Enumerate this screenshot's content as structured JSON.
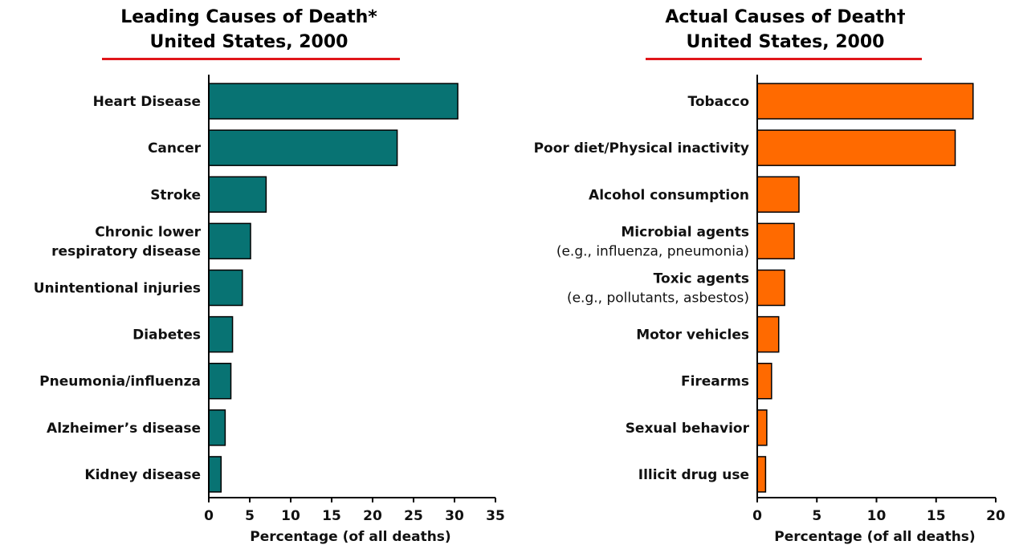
{
  "chart_data": [
    {
      "type": "bar",
      "orientation": "horizontal",
      "title_line1": "Leading Causes of Death*",
      "title_line2": "United States, 2000",
      "xlabel": "Percentage (of all deaths)",
      "xlim": [
        0,
        35
      ],
      "xticks": [
        "0",
        "5",
        "10",
        "15",
        "20",
        "25",
        "30",
        "35"
      ],
      "categories": [
        {
          "label": "Heart Disease",
          "sub": ""
        },
        {
          "label": "Cancer",
          "sub": ""
        },
        {
          "label": "Stroke",
          "sub": ""
        },
        {
          "label": "Chronic lower",
          "sub": "respiratory disease"
        },
        {
          "label": "Unintentional injuries",
          "sub": ""
        },
        {
          "label": "Diabetes",
          "sub": ""
        },
        {
          "label": "Pneumonia/influenza",
          "sub": ""
        },
        {
          "label": "Alzheimer’s disease",
          "sub": ""
        },
        {
          "label": "Kidney disease",
          "sub": ""
        }
      ],
      "values": [
        30.4,
        23.0,
        7.0,
        5.1,
        4.1,
        2.9,
        2.7,
        2.0,
        1.5
      ],
      "bar_color": "#087373",
      "title_rule_color": "#e0161a"
    },
    {
      "type": "bar",
      "orientation": "horizontal",
      "title_line1": "Actual Causes of Death†",
      "title_line2": "United States, 2000",
      "xlabel": "Percentage (of all deaths)",
      "xlim": [
        0,
        20
      ],
      "xticks": [
        "0",
        "5",
        "10",
        "15",
        "20"
      ],
      "categories": [
        {
          "label": "Tobacco",
          "sub": ""
        },
        {
          "label": "Poor diet/Physical inactivity",
          "sub": ""
        },
        {
          "label": "Alcohol consumption",
          "sub": ""
        },
        {
          "label": "Microbial agents",
          "sub": "(e.g., influenza, pneumonia)"
        },
        {
          "label": "Toxic agents",
          "sub": "(e.g., pollutants, asbestos)"
        },
        {
          "label": "Motor vehicles",
          "sub": ""
        },
        {
          "label": "Firearms",
          "sub": ""
        },
        {
          "label": "Sexual behavior",
          "sub": ""
        },
        {
          "label": "Illicit drug use",
          "sub": ""
        }
      ],
      "values": [
        18.1,
        16.6,
        3.5,
        3.1,
        2.3,
        1.8,
        1.2,
        0.8,
        0.7
      ],
      "bar_color": "#ff6a00",
      "title_rule_color": "#e0161a"
    }
  ]
}
